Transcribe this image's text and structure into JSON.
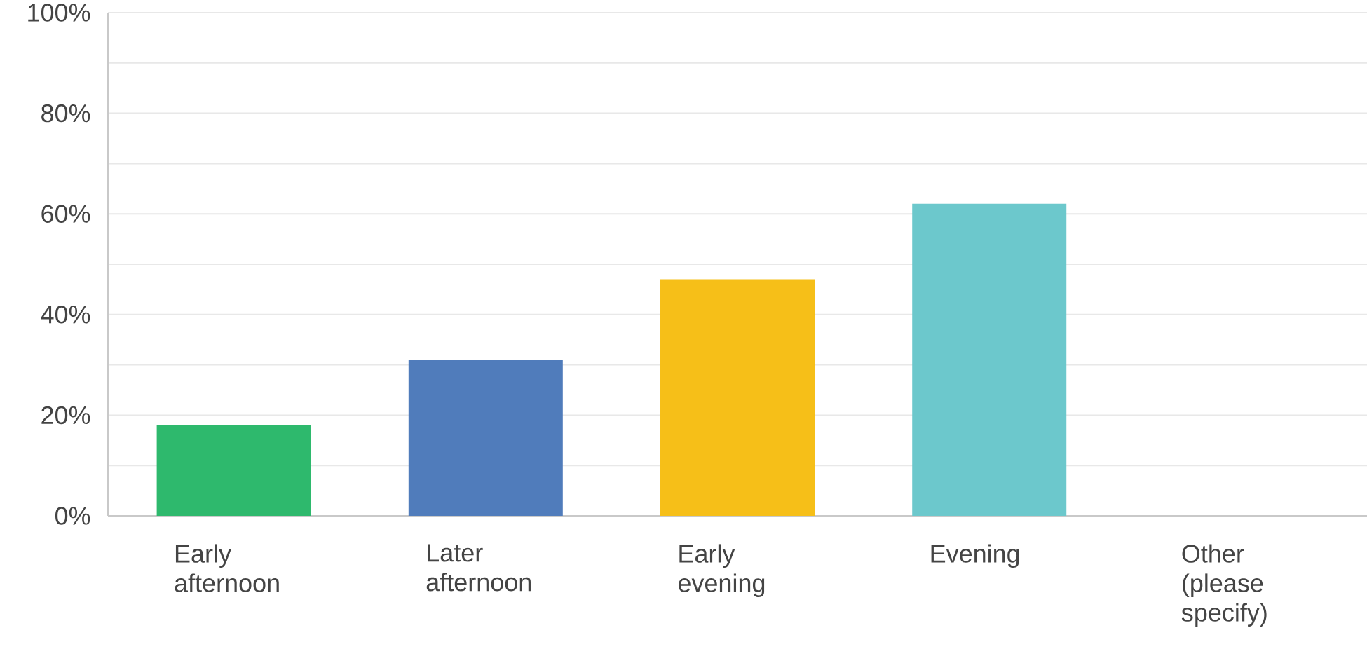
{
  "chart_data": {
    "type": "bar",
    "categories": [
      "Early afternoon",
      "Later afternoon",
      "Early evening",
      "Evening",
      "Other (please specify)"
    ],
    "values": [
      18,
      31,
      47,
      62,
      0
    ],
    "colors": [
      "#2eb96d",
      "#507cbb",
      "#f6bf18",
      "#6cc8cc",
      "#9a9a9a"
    ],
    "ylim": [
      0,
      100
    ],
    "yticks": [
      {
        "value": 0,
        "label": "0%"
      },
      {
        "value": 10,
        "label": null
      },
      {
        "value": 20,
        "label": "20%"
      },
      {
        "value": 30,
        "label": null
      },
      {
        "value": 40,
        "label": "40%"
      },
      {
        "value": 50,
        "label": null
      },
      {
        "value": 60,
        "label": "60%"
      },
      {
        "value": 70,
        "label": null
      },
      {
        "value": 80,
        "label": "80%"
      },
      {
        "value": 90,
        "label": null
      },
      {
        "value": 100,
        "label": "100%"
      }
    ],
    "grid": "y"
  }
}
